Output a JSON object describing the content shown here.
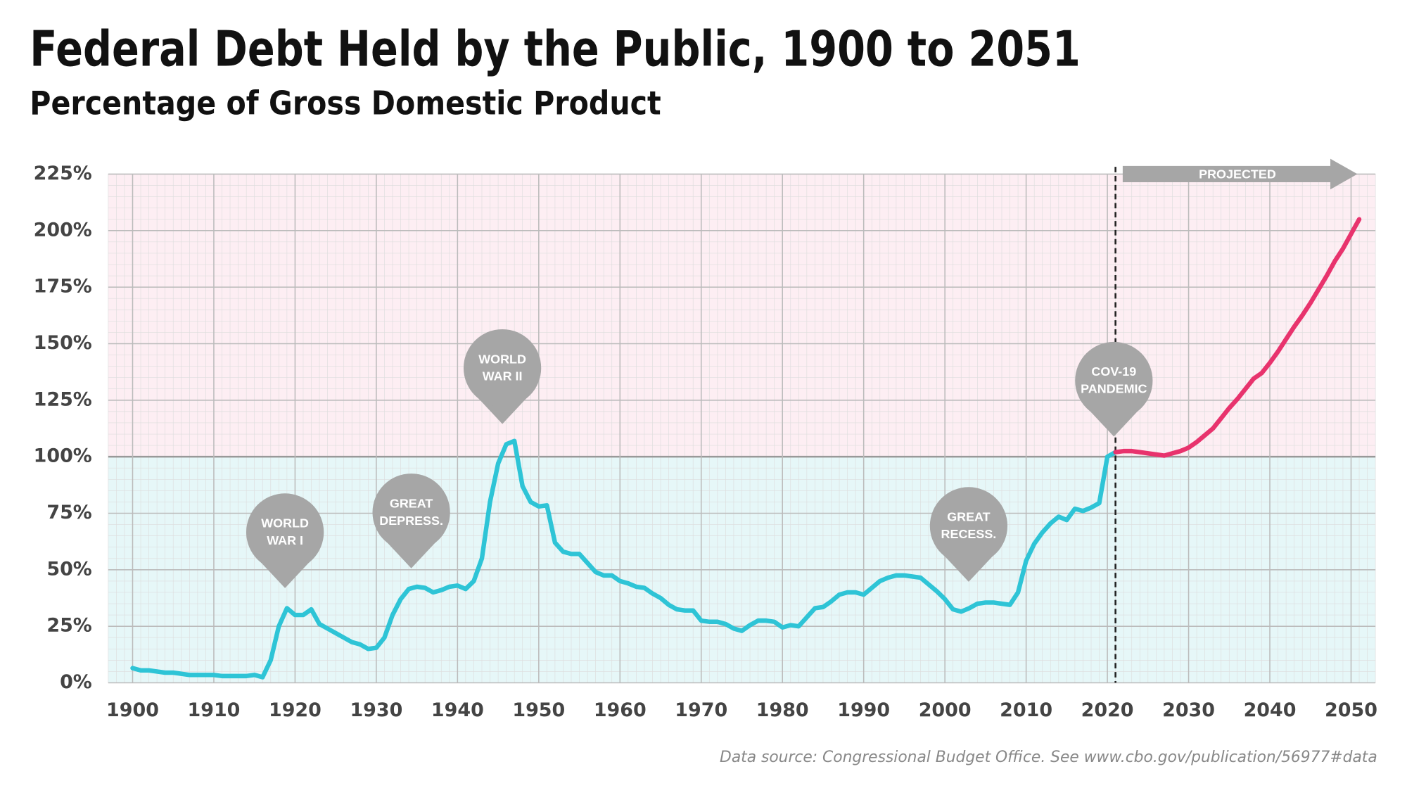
{
  "chart_data": {
    "type": "line",
    "title": "Federal Debt Held by the Public, 1900 to 2051",
    "subtitle": "Percentage of Gross Domestic Product",
    "source": "Data source: Congressional Budget Office. See www.cbo.gov/publication/56977#data",
    "projection_label": "PROJECTED",
    "xlim": [
      1897,
      2053
    ],
    "ylim": [
      0,
      225
    ],
    "xticks": [
      1900,
      1910,
      1920,
      1930,
      1940,
      1950,
      1960,
      1970,
      1980,
      1990,
      2000,
      2010,
      2020,
      2030,
      2040,
      2050
    ],
    "yticks": [
      {
        "value": 0,
        "label": "0%"
      },
      {
        "value": 25,
        "label": "25%"
      },
      {
        "value": 50,
        "label": "50%"
      },
      {
        "value": 75,
        "label": "75%"
      },
      {
        "value": 100,
        "label": "100%"
      },
      {
        "value": 125,
        "label": "125%"
      },
      {
        "value": 150,
        "label": "150%"
      },
      {
        "value": 175,
        "label": "175%"
      },
      {
        "value": 200,
        "label": "200%"
      },
      {
        "value": 225,
        "label": "225%"
      }
    ],
    "grid": true,
    "series": [
      {
        "color": "#2ec4d6",
        "x": [
          1900,
          1901,
          1902,
          1903,
          1904,
          1905,
          1906,
          1907,
          1908,
          1909,
          1910,
          1911,
          1912,
          1913,
          1914,
          1915,
          1916,
          1917,
          1918,
          1919,
          1920,
          1921,
          1922,
          1923,
          1924,
          1925,
          1926,
          1927,
          1928,
          1929,
          1930,
          1931,
          1932,
          1933,
          1934,
          1935,
          1936,
          1937,
          1938,
          1939,
          1940,
          1941,
          1942,
          1943,
          1944,
          1945,
          1946,
          1947,
          1948,
          1949,
          1950,
          1951,
          1952,
          1953,
          1954,
          1955,
          1956,
          1957,
          1958,
          1959,
          1960,
          1961,
          1962,
          1963,
          1964,
          1965,
          1966,
          1967,
          1968,
          1969,
          1970,
          1971,
          1972,
          1973,
          1974,
          1975,
          1976,
          1977,
          1978,
          1979,
          1980,
          1981,
          1982,
          1983,
          1984,
          1985,
          1986,
          1987,
          1988,
          1989,
          1990,
          1991,
          1992,
          1993,
          1994,
          1995,
          1996,
          1997,
          1998,
          1999,
          2000,
          2001,
          2002,
          2003,
          2004,
          2005,
          2006,
          2007,
          2008,
          2009,
          2010,
          2011,
          2012,
          2013,
          2014,
          2015,
          2016,
          2017,
          2018,
          2019,
          2020,
          2021
        ],
        "values": [
          6.5,
          5.5,
          5.5,
          5,
          4.5,
          4.5,
          4,
          3.5,
          3.5,
          3.5,
          3.5,
          3,
          3,
          3,
          3,
          3.5,
          2.5,
          10,
          25,
          33,
          30,
          30,
          32.5,
          26,
          24,
          22,
          20,
          18,
          17,
          15,
          15.5,
          20,
          30,
          37,
          41.5,
          42.5,
          42,
          40,
          41,
          42.5,
          43,
          41.5,
          45,
          55,
          80,
          97,
          105.5,
          107,
          87,
          80,
          78,
          78.5,
          62,
          58,
          57,
          57,
          53,
          49,
          47.5,
          47.5,
          45,
          44,
          42.5,
          42,
          39.5,
          37.5,
          34.5,
          32.5,
          32,
          32,
          27.5,
          27,
          27,
          26,
          24,
          23,
          25.5,
          27.5,
          27.5,
          27,
          24.5,
          25.5,
          25,
          29,
          33,
          33.5,
          36,
          39,
          40,
          40,
          39,
          42,
          45,
          46.5,
          47.5,
          47.5,
          47,
          46.5,
          43.5,
          40.5,
          37,
          32.5,
          31.5,
          33,
          35,
          35.5,
          35.5,
          35,
          34.5,
          40,
          54,
          61.5,
          66.5,
          70.5,
          73.5,
          72,
          77,
          76,
          77.5,
          79.5,
          100,
          102
        ]
      },
      {
        "color": "#e8336d",
        "x": [
          2021,
          2022,
          2023,
          2024,
          2025,
          2026,
          2027,
          2028,
          2029,
          2030,
          2031,
          2032,
          2033,
          2034,
          2035,
          2036,
          2037,
          2038,
          2039,
          2040,
          2041,
          2042,
          2043,
          2044,
          2045,
          2046,
          2047,
          2048,
          2049,
          2050,
          2051
        ],
        "values": [
          102,
          102.5,
          102.5,
          102,
          101.5,
          101,
          100.5,
          101.5,
          102.5,
          104,
          106.5,
          109.5,
          112.5,
          117,
          121.5,
          125.5,
          130,
          134.5,
          137,
          141.5,
          146.5,
          152,
          157.5,
          162.5,
          168,
          174,
          180,
          186.5,
          192,
          198.5,
          205
        ]
      }
    ],
    "annotations": [
      [
        "WORLD",
        "WAR I"
      ],
      [
        "GREAT",
        "DEPRESS."
      ],
      [
        "WORLD",
        "WAR II"
      ],
      [
        "GREAT",
        "RECESS."
      ],
      [
        "COV-19",
        "PANDEMIC"
      ]
    ]
  }
}
